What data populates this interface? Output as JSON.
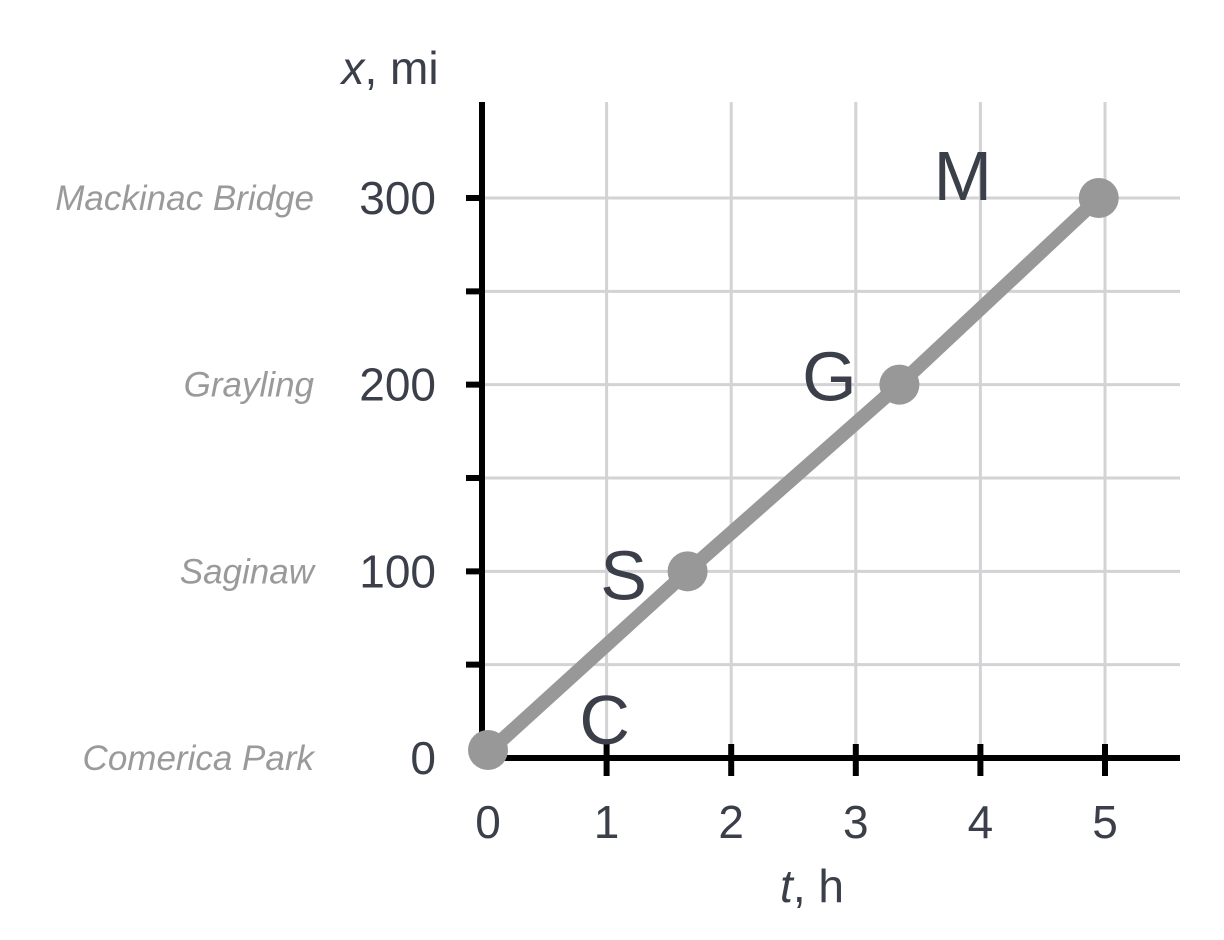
{
  "chart_data": {
    "type": "line",
    "title": "",
    "xlabel": {
      "var": "t",
      "unit": ", h"
    },
    "ylabel": {
      "var": "x",
      "unit": ", mi"
    },
    "xlim": [
      0,
      5.6
    ],
    "ylim": [
      0,
      350
    ],
    "x_ticks": [
      0,
      1,
      2,
      3,
      4,
      5
    ],
    "x_tick_labels": [
      "0",
      "1",
      "2",
      "3",
      "4",
      "5"
    ],
    "y_ticks": [
      0,
      50,
      100,
      150,
      200,
      250,
      300
    ],
    "y_tick_labels": [
      {
        "value": 0,
        "label": "0"
      },
      {
        "value": 100,
        "label": "100"
      },
      {
        "value": 200,
        "label": "200"
      },
      {
        "value": 300,
        "label": "300"
      }
    ],
    "place_labels": [
      {
        "value": 0,
        "label": "Comerica Park"
      },
      {
        "value": 100,
        "label": "Saginaw"
      },
      {
        "value": 200,
        "label": "Grayling"
      },
      {
        "value": 300,
        "label": "Mackinac Bridge"
      }
    ],
    "grid": true,
    "series": [
      {
        "color": "#979897",
        "points": [
          {
            "x": 0,
            "y": 0
          },
          {
            "x": 1.65,
            "y": 100
          },
          {
            "x": 3.35,
            "y": 200
          },
          {
            "x": 4.95,
            "y": 300
          }
        ]
      }
    ],
    "point_labels": [
      {
        "label": "C",
        "x": 1.0,
        "y": 0
      },
      {
        "label": "S",
        "x": 1.65,
        "y": 100
      },
      {
        "label": "G",
        "x": 3.35,
        "y": 200
      },
      {
        "label": "M",
        "x": 4.95,
        "y": 300
      }
    ]
  }
}
